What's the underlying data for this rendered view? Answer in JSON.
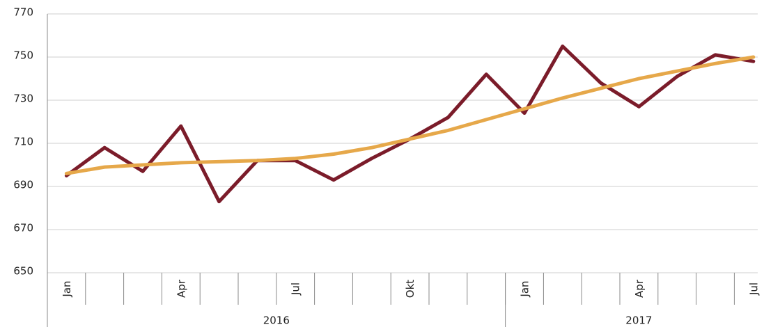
{
  "chart_data": {
    "type": "line",
    "categories": [
      "Jan",
      null,
      null,
      "Apr",
      null,
      null,
      "Jul",
      null,
      null,
      "Okt",
      null,
      null,
      "Jan",
      null,
      null,
      "Apr",
      null,
      null,
      "Jul"
    ],
    "x_groups": [
      {
        "label": "2016",
        "count": 12
      },
      {
        "label": "2017",
        "count": 7
      }
    ],
    "series": [
      {
        "color": "#7b1c2a",
        "values": [
          695,
          708,
          697,
          718,
          683,
          702,
          702,
          693,
          703,
          712,
          722,
          742,
          724,
          755,
          738,
          727,
          741,
          751,
          748
        ]
      },
      {
        "color": "#e6a84a",
        "values": [
          696,
          699,
          700,
          701,
          701.5,
          702,
          703,
          705,
          708,
          712,
          716,
          721,
          726,
          731,
          735.5,
          740,
          743.5,
          747,
          750
        ]
      }
    ],
    "ylim": [
      650,
      770
    ],
    "yticks": [
      650,
      670,
      690,
      710,
      730,
      750,
      770
    ],
    "grid": true
  }
}
